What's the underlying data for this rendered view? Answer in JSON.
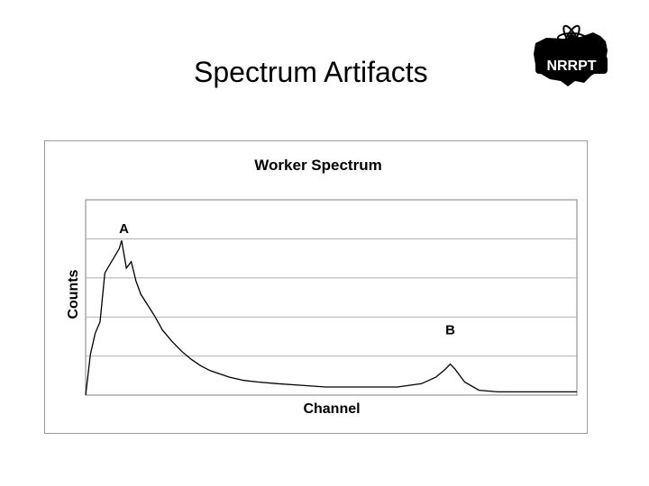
{
  "slide": {
    "title": "Spectrum Artifacts",
    "logo_text": "NRRPT"
  },
  "chart_data": {
    "type": "line",
    "title": "Worker Spectrum",
    "xlabel": "Channel",
    "ylabel": "Counts",
    "xlim": [
      0,
      1024
    ],
    "ylim": [
      0,
      120
    ],
    "grid": "horizontal",
    "x_ticks_shown": false,
    "y_ticks_shown": false,
    "annotations": [
      {
        "text": "A",
        "x": 80,
        "y": 95
      },
      {
        "text": "B",
        "x": 760,
        "y": 33
      }
    ],
    "series": [
      {
        "values": [
          {
            "x": 0,
            "y": 0
          },
          {
            "x": 10,
            "y": 25
          },
          {
            "x": 20,
            "y": 38
          },
          {
            "x": 30,
            "y": 45
          },
          {
            "x": 40,
            "y": 75
          },
          {
            "x": 50,
            "y": 80
          },
          {
            "x": 60,
            "y": 85
          },
          {
            "x": 70,
            "y": 90
          },
          {
            "x": 75,
            "y": 95
          },
          {
            "x": 85,
            "y": 78
          },
          {
            "x": 95,
            "y": 82
          },
          {
            "x": 105,
            "y": 70
          },
          {
            "x": 115,
            "y": 62
          },
          {
            "x": 130,
            "y": 55
          },
          {
            "x": 145,
            "y": 48
          },
          {
            "x": 160,
            "y": 40
          },
          {
            "x": 180,
            "y": 33
          },
          {
            "x": 200,
            "y": 27
          },
          {
            "x": 220,
            "y": 22
          },
          {
            "x": 240,
            "y": 18
          },
          {
            "x": 260,
            "y": 15
          },
          {
            "x": 280,
            "y": 13
          },
          {
            "x": 300,
            "y": 11
          },
          {
            "x": 330,
            "y": 9
          },
          {
            "x": 360,
            "y": 8
          },
          {
            "x": 400,
            "y": 7
          },
          {
            "x": 450,
            "y": 6
          },
          {
            "x": 500,
            "y": 5
          },
          {
            "x": 550,
            "y": 5
          },
          {
            "x": 600,
            "y": 5
          },
          {
            "x": 650,
            "y": 5
          },
          {
            "x": 700,
            "y": 7
          },
          {
            "x": 730,
            "y": 11
          },
          {
            "x": 750,
            "y": 16
          },
          {
            "x": 760,
            "y": 19
          },
          {
            "x": 770,
            "y": 16
          },
          {
            "x": 790,
            "y": 8
          },
          {
            "x": 820,
            "y": 3
          },
          {
            "x": 860,
            "y": 2
          },
          {
            "x": 900,
            "y": 2
          },
          {
            "x": 950,
            "y": 2
          },
          {
            "x": 1000,
            "y": 2
          },
          {
            "x": 1024,
            "y": 2
          }
        ]
      }
    ]
  }
}
